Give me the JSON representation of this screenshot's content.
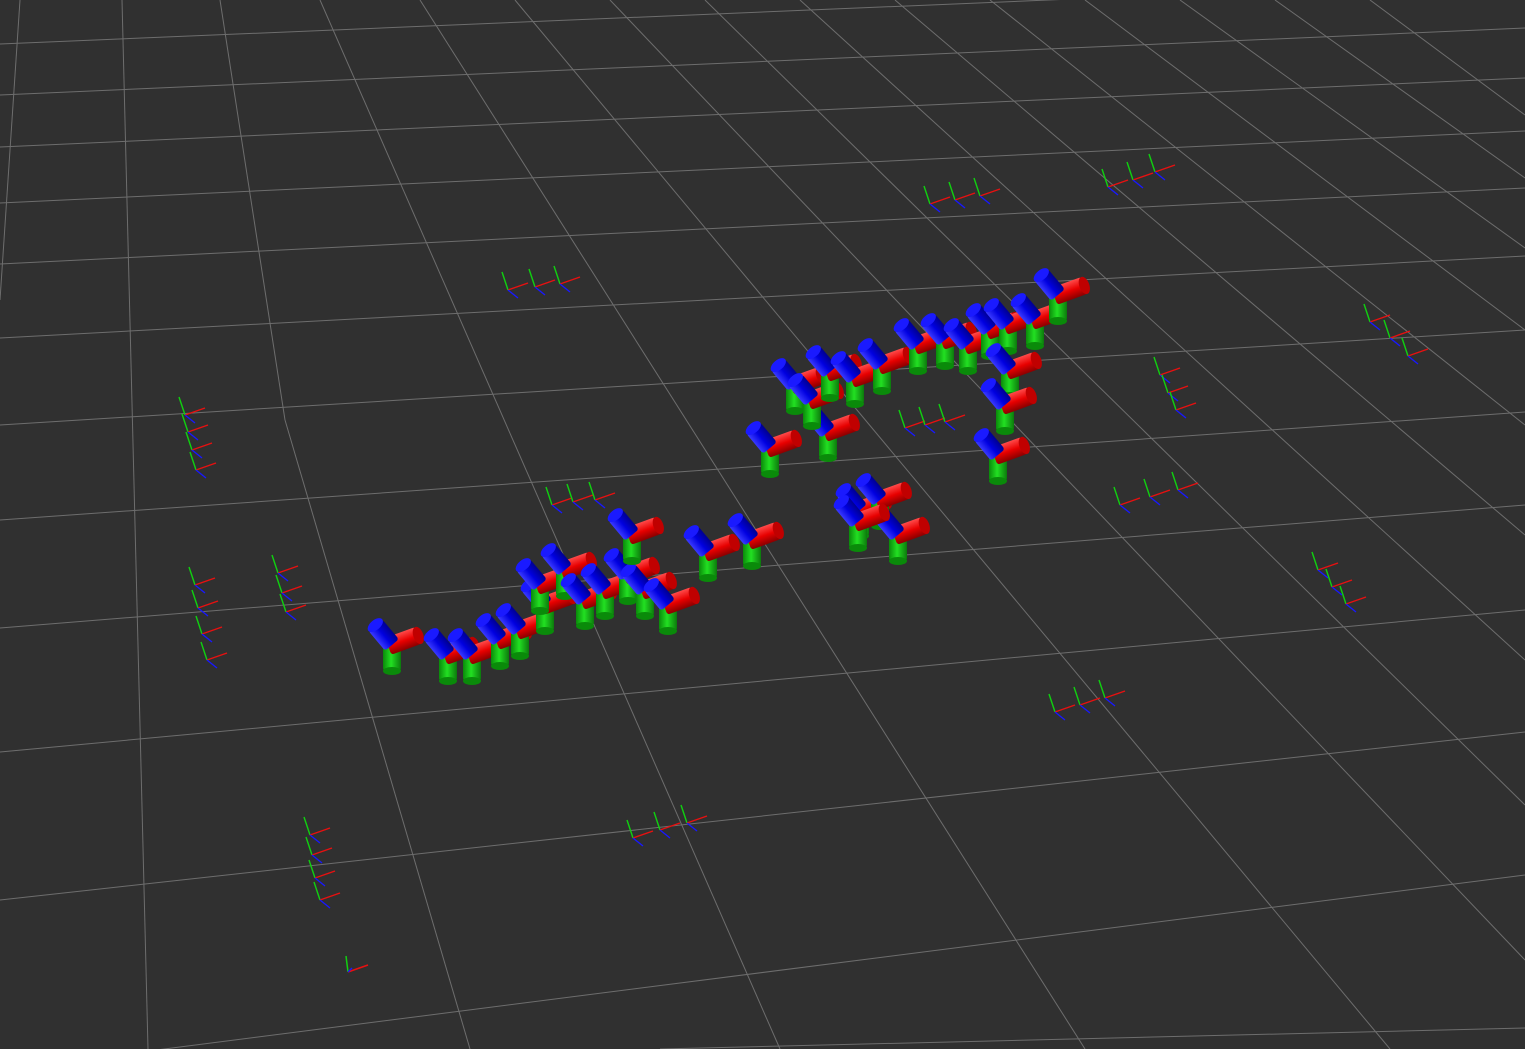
{
  "viewport": {
    "background": "#303030",
    "grid_color": "#a0a0a0",
    "axis_colors": {
      "x": "#ff0000",
      "y": "#00ff00",
      "z": "#0000ff"
    }
  },
  "icons": [
    "origin-axes-icon",
    "tf-frame-icon",
    "cylinder-marker-icon"
  ]
}
